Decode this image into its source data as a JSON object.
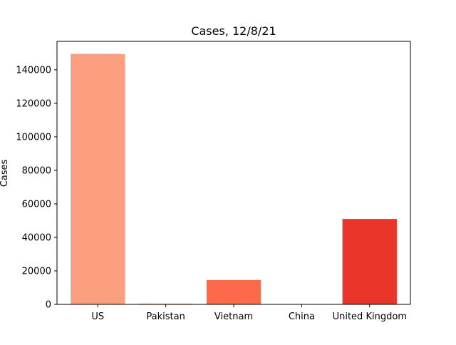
{
  "chart_data": {
    "type": "bar",
    "title": "Cases, 12/8/21",
    "xlabel": "",
    "ylabel": "Cases",
    "categories": [
      "US",
      "Pakistan",
      "Vietnam",
      "China",
      "United Kingdom"
    ],
    "values": [
      149500,
      400,
      14500,
      100,
      51000
    ],
    "colors": [
      "#fc9e80",
      "#fc8565",
      "#fb6a4a",
      "#f44f39",
      "#e83429"
    ],
    "ylim": [
      0,
      157000
    ],
    "yticks": [
      0,
      20000,
      40000,
      60000,
      80000,
      100000,
      120000,
      140000
    ],
    "ytick_labels": [
      "0",
      "20000",
      "40000",
      "60000",
      "80000",
      "100000",
      "120000",
      "140000"
    ],
    "grid": false,
    "legend": "none"
  }
}
